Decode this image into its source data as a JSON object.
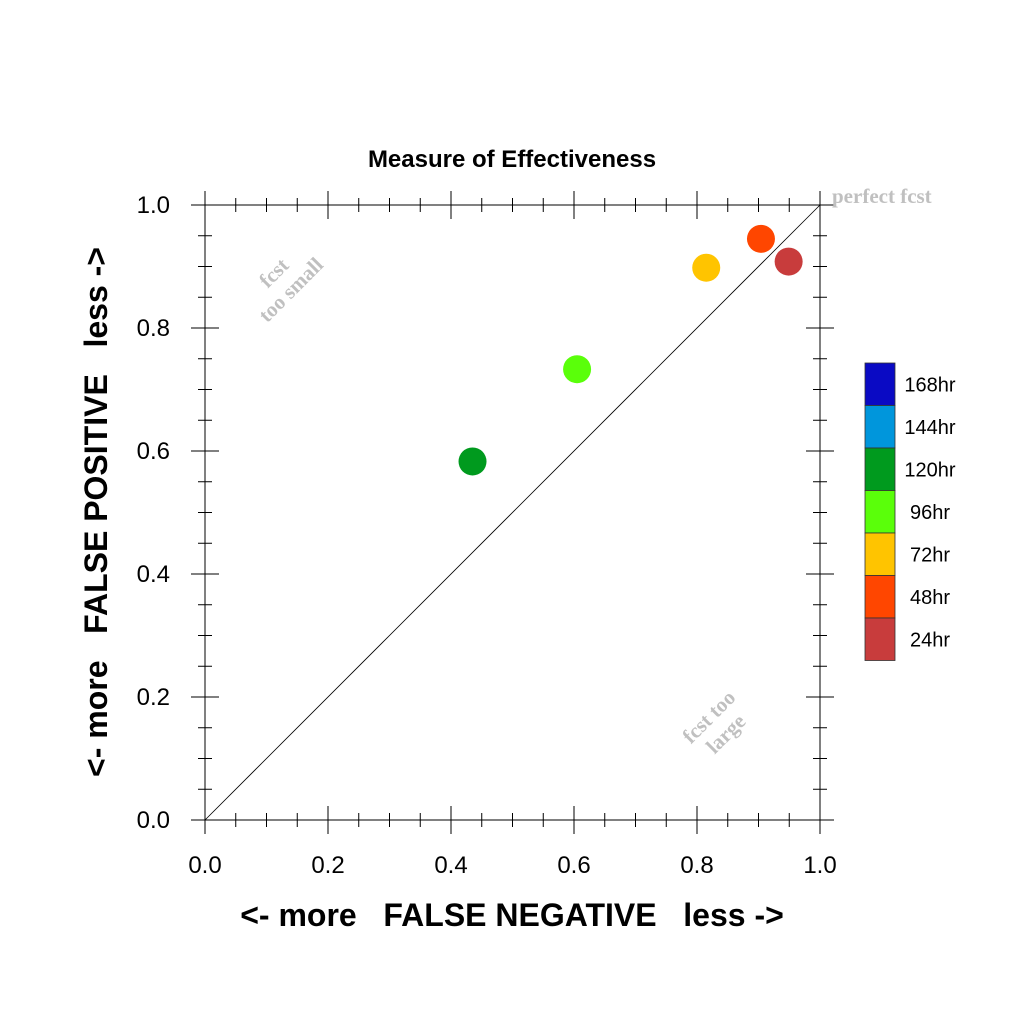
{
  "chart_data": {
    "type": "scatter",
    "title": "Measure of Effectiveness",
    "xlabel": "<- more   FALSE NEGATIVE   less ->",
    "ylabel": "<- more   FALSE POSITIVE   less ->",
    "xlim": [
      0,
      1
    ],
    "ylim": [
      0,
      1
    ],
    "x_ticks": [
      "0.0",
      "0.2",
      "0.4",
      "0.6",
      "0.8",
      "1.0"
    ],
    "y_ticks": [
      "0.0",
      "0.2",
      "0.4",
      "0.6",
      "0.8",
      "1.0"
    ],
    "grid": false,
    "diagonal_reference_line": true,
    "annotations": {
      "top_right": "perfect fcst",
      "upper_left": [
        "fcst",
        "too small"
      ],
      "lower_right": [
        "fcst too",
        "large"
      ]
    },
    "legend_position": "right",
    "legend": [
      {
        "label": "168hr",
        "color": "#0a0ac4"
      },
      {
        "label": "144hr",
        "color": "#0096dc"
      },
      {
        "label": "120hr",
        "color": "#009a1e"
      },
      {
        "label": "96hr",
        "color": "#5aff0a"
      },
      {
        "label": "72hr",
        "color": "#ffc400"
      },
      {
        "label": "48hr",
        "color": "#ff4600"
      },
      {
        "label": "24hr",
        "color": "#c83c3c"
      }
    ],
    "points": [
      {
        "series": "120hr",
        "x": 0.435,
        "y": 0.583,
        "color": "#009a1e"
      },
      {
        "series": "96hr",
        "x": 0.605,
        "y": 0.733,
        "color": "#5aff0a"
      },
      {
        "series": "72hr",
        "x": 0.815,
        "y": 0.898,
        "color": "#ffc400"
      },
      {
        "series": "48hr",
        "x": 0.904,
        "y": 0.945,
        "color": "#ff4600"
      },
      {
        "series": "24hr",
        "x": 0.949,
        "y": 0.908,
        "color": "#c83c3c"
      }
    ]
  }
}
